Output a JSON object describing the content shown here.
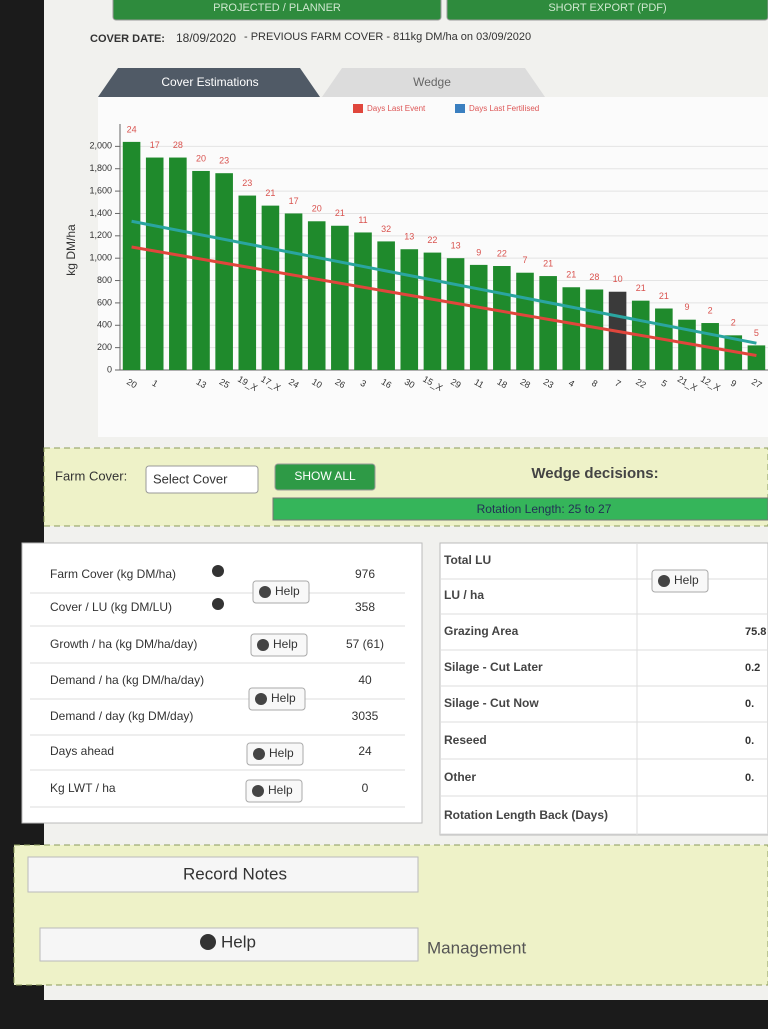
{
  "header": {
    "buttons": [
      "PROJECTED / PLANNER",
      "SHORT EXPORT (PDF)"
    ],
    "cover_date_label": "COVER DATE:",
    "cover_date": "18/09/2020",
    "previous_cover": "-  PREVIOUS FARM COVER - 811kg DM/ha on 03/09/2020"
  },
  "tabs": [
    "Cover Estimations",
    "Wedge"
  ],
  "chart_data": {
    "type": "bar",
    "y_label": "kg DM/ha",
    "legend": [
      {
        "name": "Days Last Event",
        "color": "#e0463c"
      },
      {
        "name": "Days Last Fertilised",
        "color": "#3a7fc0"
      }
    ],
    "categories": [
      "20",
      "1",
      null,
      "13",
      "25",
      "19_X",
      "17_X",
      "24",
      "10",
      "26",
      "3",
      "16",
      "30",
      "15_X",
      "29",
      "11",
      "18",
      "28",
      "23",
      "4",
      "8",
      "7",
      "22",
      "5",
      "21_X",
      "12_X",
      "9",
      "27"
    ],
    "values": [
      2040,
      1900,
      1900,
      1780,
      1760,
      1560,
      1470,
      1400,
      1330,
      1290,
      1230,
      1150,
      1080,
      1050,
      1000,
      940,
      930,
      870,
      840,
      740,
      720,
      700,
      620,
      550,
      450,
      420,
      310,
      220
    ],
    "days_labels": [
      24,
      17,
      28,
      20,
      23,
      23,
      21,
      17,
      20,
      21,
      11,
      32,
      13,
      22,
      13,
      9,
      22,
      7,
      21,
      21,
      28,
      10,
      21,
      21,
      9,
      2,
      2,
      5
    ],
    "color": "#1f8a2c",
    "highlight_category": "7",
    "highlight_color": "#3a3a3a",
    "lines": [
      {
        "color": "#e0463c",
        "values": [
          1100,
          130
        ]
      },
      {
        "color": "#2aa5a0",
        "values": [
          1330,
          240
        ]
      }
    ],
    "ylim": [
      0,
      2200
    ],
    "yticks": [
      0,
      200,
      400,
      600,
      800,
      {
        "value": 1000,
        "label": "1,000"
      },
      {
        "value": 1200,
        "label": "1,200"
      },
      {
        "value": 1400,
        "label": "1,400"
      },
      {
        "value": 1600,
        "label": "1,600"
      },
      {
        "value": 1800,
        "label": "1,800"
      },
      {
        "value": 2000,
        "label": "2,000"
      }
    ],
    "grid": true
  },
  "controls": {
    "farm_cover_label": "Farm Cover:",
    "select": "Select Cover",
    "show_all": "SHOW ALL",
    "wedge_title": "Wedge decisions:",
    "rotation": "Rotation Length: 25 to 27"
  },
  "left_table": {
    "rows": [
      [
        "Farm Cover (kg DM/ha)",
        "976"
      ],
      [
        "Cover / LU (kg DM/LU)",
        "358"
      ],
      [
        "Growth / ha (kg DM/ha/day)",
        "57 (61)"
      ],
      [
        "Demand / ha (kg DM/ha/day)",
        "40"
      ],
      [
        "Demand / day (kg DM/day)",
        "3035"
      ],
      [
        "Days ahead",
        "24"
      ],
      [
        "Kg LWT / ha",
        "0"
      ]
    ],
    "help_buttons": [
      "Help",
      "Help",
      "Help",
      "Help",
      "Help"
    ]
  },
  "right_table": {
    "rows": [
      [
        "Total LU"
      ],
      [
        "LU / ha"
      ],
      [
        "Grazing Area",
        "75.8"
      ],
      [
        "Silage - Cut Later",
        "0.2"
      ],
      [
        "Silage - Cut Now",
        "0."
      ],
      [
        "Reseed",
        "0."
      ],
      [
        "Other",
        "0."
      ],
      [
        "Rotation Length Back (Days)"
      ]
    ],
    "help_button": "Help"
  },
  "footer": {
    "record_notes": "Record Notes",
    "help": "Help",
    "management": "Management"
  }
}
